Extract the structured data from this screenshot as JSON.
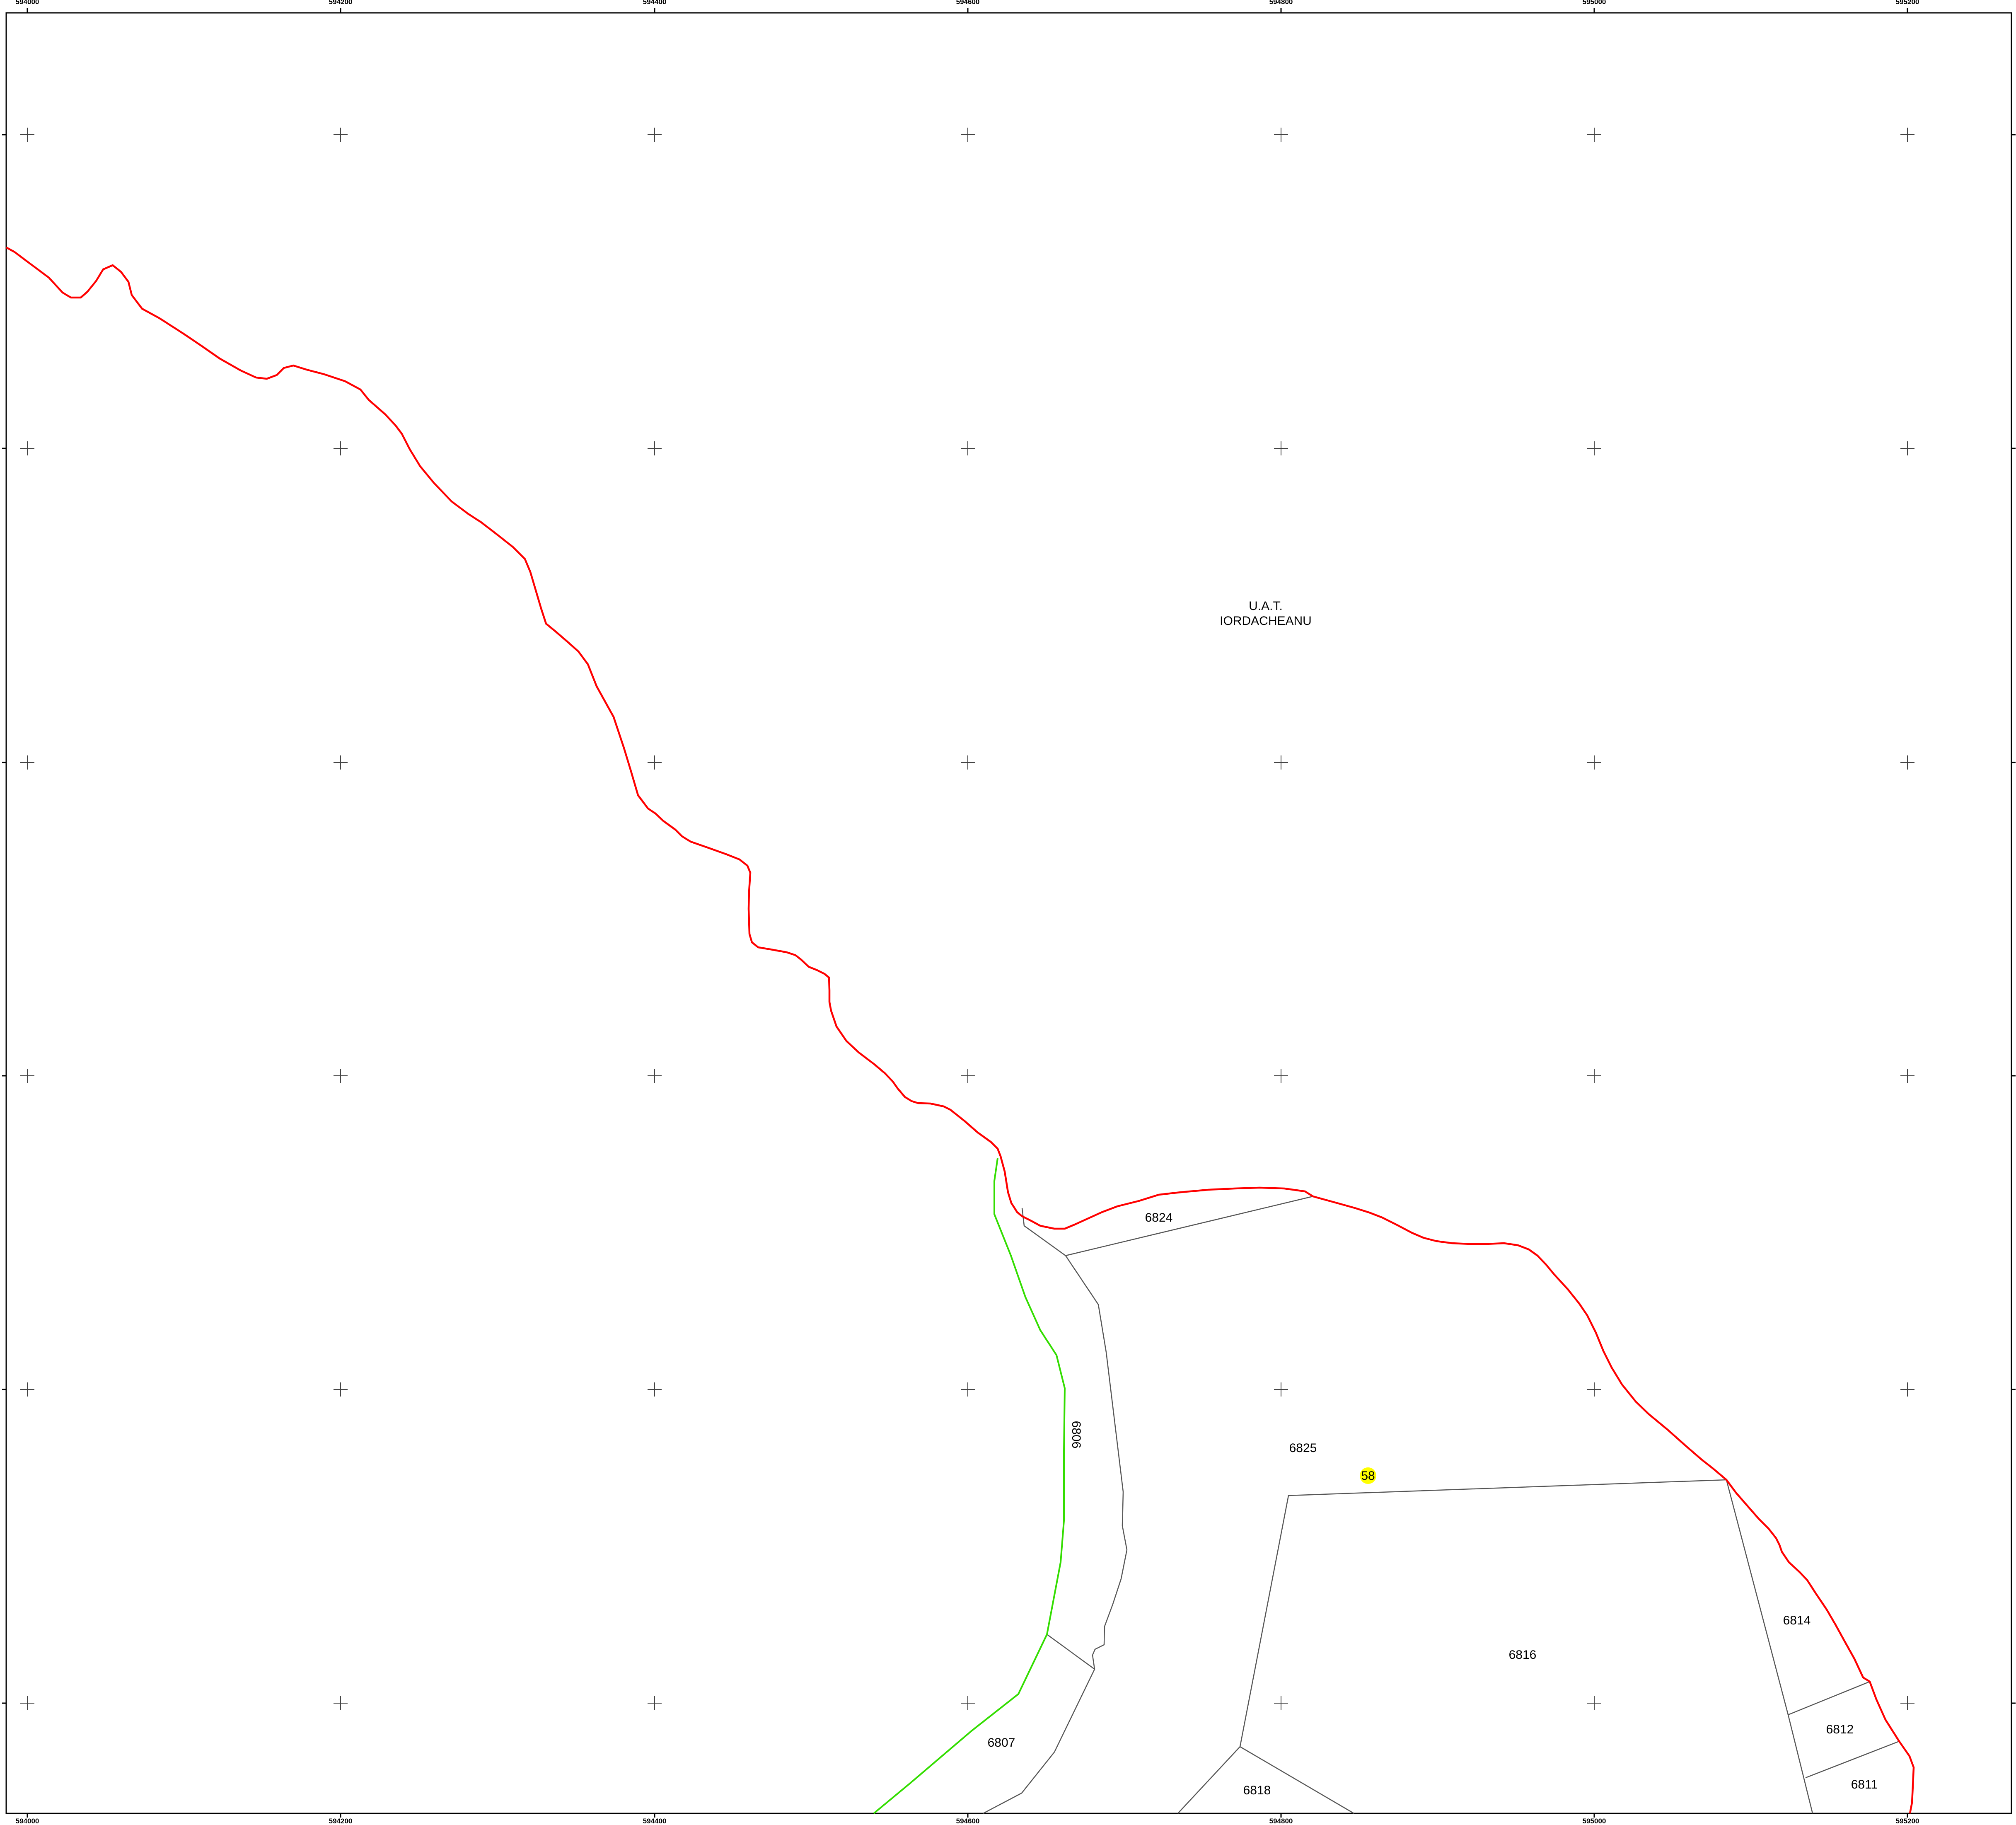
{
  "map": {
    "uat_label_line1": "U.A.T.",
    "uat_label_line2": "IORDACHEANU",
    "x_ticks": [
      "594000",
      "594200",
      "594400",
      "594600",
      "594800",
      "595000",
      "595200"
    ],
    "parcels": {
      "p6824": "6824",
      "p6825": "6825",
      "p6806": "6806",
      "p6807": "6807",
      "p6816": "6816",
      "p6818": "6818",
      "p6814": "6814",
      "p6812": "6812",
      "p6811": "6811"
    },
    "marker": {
      "label": "58",
      "color": "#ffff00"
    },
    "colors": {
      "uat_boundary": "#ff0000",
      "green_boundary": "#33dd00",
      "parcel_lines": "#555555",
      "frame": "#000000",
      "grid_cross": "#444444"
    }
  }
}
